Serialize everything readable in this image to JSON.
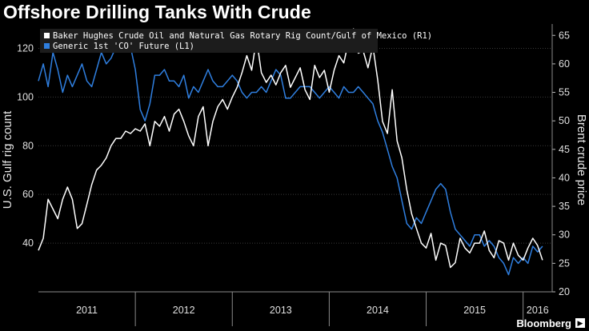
{
  "header": {
    "title": "Offshore Drilling Tanks With Crude"
  },
  "footer": {
    "brand": "Bloomberg",
    "brand_icon": "play-icon"
  },
  "colors": {
    "background": "#000000",
    "rig_line": "#ffffff",
    "crude_line": "#2f7fe0",
    "grid": "#3a3a3a"
  },
  "chart_data": {
    "type": "line",
    "title": "Offshore Drilling Tanks With Crude",
    "ylabel_left": "U.S. Gulf rig count",
    "ylabel_right": "Brent crude price",
    "ylim_left": [
      20,
      130
    ],
    "ylim_right": [
      20,
      67
    ],
    "left_ticks": [
      "40",
      "60",
      "80",
      "100",
      "120"
    ],
    "right_ticks": [
      "20",
      "25",
      "30",
      "35",
      "40",
      "45",
      "50",
      "55",
      "60",
      "65"
    ],
    "x_ticks": [
      "2011",
      "2012",
      "2013",
      "2014",
      "2015",
      "2016"
    ],
    "xlim": [
      2011.0,
      2016.3
    ],
    "series": [
      {
        "name": "Baker Hughes Crude Oil and Natural Gas Rotary Rig Count/Gulf of Mexico  (R1)",
        "axis": "left",
        "color": "#ffffff",
        "x": [
          2011.0,
          2011.05,
          2011.1,
          2011.15,
          2011.2,
          2011.25,
          2011.3,
          2011.35,
          2011.4,
          2011.45,
          2011.5,
          2011.55,
          2011.6,
          2011.65,
          2011.7,
          2011.75,
          2011.8,
          2011.85,
          2011.9,
          2011.95,
          2012.0,
          2012.05,
          2012.1,
          2012.15,
          2012.2,
          2012.25,
          2012.3,
          2012.35,
          2012.4,
          2012.45,
          2012.5,
          2012.55,
          2012.6,
          2012.65,
          2012.7,
          2012.75,
          2012.8,
          2012.85,
          2012.9,
          2012.95,
          2013.0,
          2013.05,
          2013.1,
          2013.15,
          2013.2,
          2013.25,
          2013.3,
          2013.35,
          2013.4,
          2013.45,
          2013.5,
          2013.55,
          2013.6,
          2013.65,
          2013.7,
          2013.75,
          2013.8,
          2013.85,
          2013.9,
          2013.95,
          2014.0,
          2014.05,
          2014.1,
          2014.15,
          2014.2,
          2014.25,
          2014.3,
          2014.35,
          2014.4,
          2014.45,
          2014.5,
          2014.55,
          2014.6,
          2014.65,
          2014.7,
          2014.75,
          2014.8,
          2014.85,
          2014.9,
          2014.95,
          2015.0,
          2015.05,
          2015.1,
          2015.15,
          2015.2,
          2015.25,
          2015.3,
          2015.35,
          2015.4,
          2015.45,
          2015.5,
          2015.55,
          2015.6,
          2015.65,
          2015.7,
          2015.75,
          2015.8,
          2015.85,
          2015.9,
          2015.95,
          2016.0,
          2016.05,
          2016.1,
          2016.15,
          2016.2
        ],
        "values": [
          37,
          42,
          58,
          54,
          50,
          58,
          63,
          58,
          46,
          48,
          56,
          64,
          70,
          72,
          75,
          80,
          83,
          83,
          86,
          85,
          87,
          86,
          89,
          80,
          90,
          88,
          92,
          86,
          93,
          95,
          90,
          84,
          80,
          92,
          96,
          80,
          90,
          96,
          99,
          95,
          100,
          104,
          110,
          117,
          111,
          124,
          110,
          106,
          109,
          105,
          110,
          113,
          104,
          108,
          112,
          103,
          99,
          113,
          108,
          111,
          102,
          111,
          117,
          114,
          123,
          128,
          118,
          119,
          112,
          121,
          107,
          90,
          85,
          103,
          82,
          75,
          62,
          52,
          46,
          40,
          38,
          44,
          33,
          40,
          39,
          30,
          32,
          42,
          38,
          36,
          40,
          40,
          45,
          37,
          34,
          41,
          40,
          33,
          40,
          35,
          33,
          38,
          42,
          39,
          33
        ]
      },
      {
        "name": "Generic 1st 'CO' Future  (L1)",
        "axis": "right",
        "color": "#2f7fe0",
        "x": [
          2011.0,
          2011.05,
          2011.1,
          2011.15,
          2011.2,
          2011.25,
          2011.3,
          2011.35,
          2011.4,
          2011.45,
          2011.5,
          2011.55,
          2011.6,
          2011.65,
          2011.7,
          2011.75,
          2011.8,
          2011.85,
          2011.9,
          2011.95,
          2012.0,
          2012.05,
          2012.1,
          2012.15,
          2012.2,
          2012.25,
          2012.3,
          2012.35,
          2012.4,
          2012.45,
          2012.5,
          2012.55,
          2012.6,
          2012.65,
          2012.7,
          2012.75,
          2012.8,
          2012.85,
          2012.9,
          2012.95,
          2013.0,
          2013.05,
          2013.1,
          2013.15,
          2013.2,
          2013.25,
          2013.3,
          2013.35,
          2013.4,
          2013.45,
          2013.5,
          2013.55,
          2013.6,
          2013.65,
          2013.7,
          2013.75,
          2013.8,
          2013.85,
          2013.9,
          2013.95,
          2014.0,
          2014.05,
          2014.1,
          2014.15,
          2014.2,
          2014.25,
          2014.3,
          2014.35,
          2014.4,
          2014.45,
          2014.5,
          2014.55,
          2014.6,
          2014.65,
          2014.7,
          2014.75,
          2014.8,
          2014.85,
          2014.9,
          2014.95,
          2015.0,
          2015.05,
          2015.1,
          2015.15,
          2015.2,
          2015.25,
          2015.3,
          2015.35,
          2015.4,
          2015.45,
          2015.5,
          2015.55,
          2015.6,
          2015.65,
          2015.7,
          2015.75,
          2015.8,
          2015.85,
          2015.9,
          2015.95,
          2016.0,
          2016.05,
          2016.1,
          2016.15,
          2016.2
        ],
        "values": [
          57,
          60,
          56,
          62,
          59,
          55,
          58,
          56,
          58,
          60,
          57,
          56,
          59,
          62,
          60,
          61,
          63,
          66,
          64,
          63,
          59,
          52,
          50,
          53,
          58,
          58,
          59,
          57,
          57,
          56,
          58,
          54,
          56,
          55,
          57,
          59,
          57,
          56,
          56,
          57,
          58,
          57,
          55,
          54,
          55,
          55,
          56,
          55,
          57,
          59,
          58,
          54,
          54,
          55,
          56,
          56,
          56,
          55,
          54,
          55,
          56,
          55,
          54,
          56,
          55,
          55,
          56,
          55,
          54,
          53,
          50,
          48,
          45,
          42,
          40,
          36,
          32,
          31,
          33,
          32,
          34,
          36,
          38,
          39,
          38,
          34,
          31,
          30,
          29,
          28,
          30,
          30,
          28,
          29,
          28,
          26,
          25,
          23,
          26,
          25,
          26,
          25,
          28,
          27,
          28
        ]
      }
    ]
  }
}
